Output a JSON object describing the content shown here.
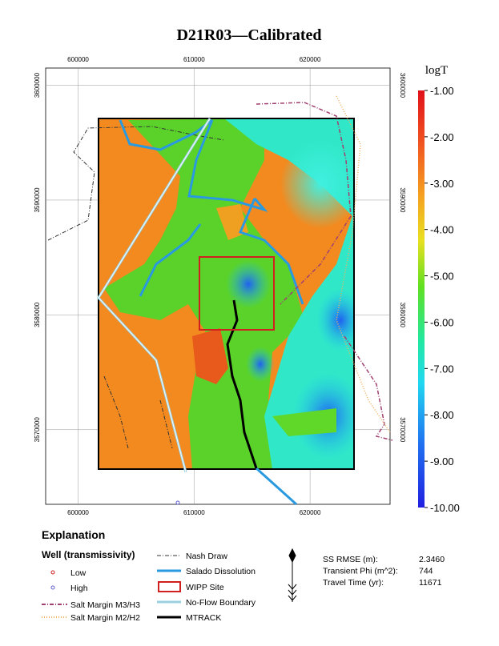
{
  "title": "D21R03—Calibrated",
  "map": {
    "xlim": [
      597200,
      626900
    ],
    "ylim": [
      3563500,
      3601500
    ],
    "xticks": [
      600000,
      610000,
      620000
    ],
    "yticks": [
      3600000,
      3590000,
      3580000,
      3570000
    ]
  },
  "colorbar": {
    "label": "logT",
    "ticks": [
      {
        "value": -1,
        "label": "-1.00"
      },
      {
        "value": -2,
        "label": "-2.00"
      },
      {
        "value": -3,
        "label": "-3.00"
      },
      {
        "value": -4,
        "label": "-4.00"
      },
      {
        "value": -5,
        "label": "-5.00"
      },
      {
        "value": -6,
        "label": "-6.00"
      },
      {
        "value": -7,
        "label": "-7.00"
      },
      {
        "value": -8,
        "label": "-8.00"
      },
      {
        "value": -9,
        "label": "-9.00"
      },
      {
        "value": -10,
        "label": "-10.00"
      }
    ]
  },
  "legend": {
    "title": "Explanation",
    "subtitle": "Well (transmissivity)",
    "items": [
      "Low",
      "High",
      "Salt Margin M3/H3",
      "Salt Margin M2/H2",
      "Nash Draw",
      "Salado Dissolution",
      "WIPP Site",
      "No-Flow Boundary",
      "MTRACK"
    ]
  },
  "stats": [
    {
      "label": "SS RMSE (m):",
      "value": "2.3460"
    },
    {
      "label": "Transient Phi (m^2):",
      "value": "744"
    },
    {
      "label": "Travel Time (yr):",
      "value": "11671"
    }
  ]
}
